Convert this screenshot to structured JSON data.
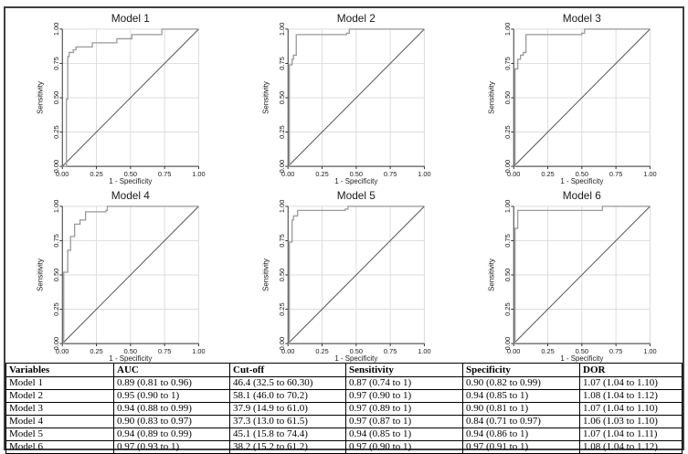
{
  "colors": {
    "figure_border": "#404040",
    "grid": "#dcdcdc",
    "axis": "#333333",
    "roc_curve": "#999999",
    "diagonal": "#555555",
    "text": "#1a1a1a"
  },
  "chart_data": [
    {
      "type": "line",
      "subtype": "roc-step",
      "title": "Model 1",
      "xlabel": "1 - Specificity",
      "ylabel": "Sensitivity",
      "xlim": [
        0,
        1
      ],
      "ylim": [
        0,
        1
      ],
      "xticks": [
        0,
        0.25,
        0.5,
        0.75,
        1
      ],
      "yticks": [
        0,
        0.25,
        0.5,
        0.75,
        1
      ],
      "xtick_labels": [
        "0.00",
        "0.25",
        "0.50",
        "0.75",
        "1.00"
      ],
      "ytick_labels": [
        "0.00",
        "0.25",
        "0.50",
        "0.75",
        "1.00"
      ],
      "grid": true,
      "roc_points": [
        [
          0,
          0
        ],
        [
          0.03,
          0
        ],
        [
          0.03,
          0.49
        ],
        [
          0.04,
          0.49
        ],
        [
          0.04,
          0.8
        ],
        [
          0.05,
          0.8
        ],
        [
          0.05,
          0.83
        ],
        [
          0.08,
          0.83
        ],
        [
          0.08,
          0.85
        ],
        [
          0.1,
          0.85
        ],
        [
          0.1,
          0.87
        ],
        [
          0.22,
          0.87
        ],
        [
          0.22,
          0.9
        ],
        [
          0.4,
          0.9
        ],
        [
          0.4,
          0.93
        ],
        [
          0.51,
          0.93
        ],
        [
          0.51,
          0.96
        ],
        [
          0.73,
          0.96
        ],
        [
          0.73,
          1
        ],
        [
          1,
          1
        ]
      ],
      "diagonal": [
        [
          0,
          0
        ],
        [
          1,
          1
        ]
      ]
    },
    {
      "type": "line",
      "subtype": "roc-step",
      "title": "Model 2",
      "xlabel": "1 - Specificity",
      "ylabel": "Sensitivity",
      "xlim": [
        0,
        1
      ],
      "ylim": [
        0,
        1
      ],
      "xticks": [
        0,
        0.25,
        0.5,
        0.75,
        1
      ],
      "yticks": [
        0,
        0.25,
        0.5,
        0.75,
        1
      ],
      "xtick_labels": [
        "0.00",
        "0.25",
        "0.50",
        "0.75",
        "1.00"
      ],
      "ytick_labels": [
        "0.00",
        "0.25",
        "0.50",
        "0.75",
        "1.00"
      ],
      "grid": true,
      "roc_points": [
        [
          0,
          0
        ],
        [
          0.01,
          0
        ],
        [
          0.01,
          0.74
        ],
        [
          0.03,
          0.74
        ],
        [
          0.03,
          0.78
        ],
        [
          0.04,
          0.78
        ],
        [
          0.04,
          0.81
        ],
        [
          0.06,
          0.81
        ],
        [
          0.06,
          0.96
        ],
        [
          0.43,
          0.96
        ],
        [
          0.43,
          0.97
        ],
        [
          0.45,
          0.97
        ],
        [
          0.45,
          1
        ],
        [
          1,
          1
        ]
      ],
      "diagonal": [
        [
          0,
          0
        ],
        [
          1,
          1
        ]
      ]
    },
    {
      "type": "line",
      "subtype": "roc-step",
      "title": "Model 3",
      "xlabel": "1 - Specificity",
      "ylabel": "Sensitivity",
      "xlim": [
        0,
        1
      ],
      "ylim": [
        0,
        1
      ],
      "xticks": [
        0,
        0.25,
        0.5,
        0.75,
        1
      ],
      "yticks": [
        0,
        0.25,
        0.5,
        0.75,
        1
      ],
      "xtick_labels": [
        "0.00",
        "0.25",
        "0.50",
        "0.75",
        "1.00"
      ],
      "ytick_labels": [
        "0.00",
        "0.25",
        "0.50",
        "0.75",
        "1.00"
      ],
      "grid": true,
      "roc_points": [
        [
          0,
          0
        ],
        [
          0.01,
          0
        ],
        [
          0.01,
          0.71
        ],
        [
          0.03,
          0.71
        ],
        [
          0.03,
          0.78
        ],
        [
          0.05,
          0.78
        ],
        [
          0.05,
          0.81
        ],
        [
          0.07,
          0.81
        ],
        [
          0.07,
          0.83
        ],
        [
          0.09,
          0.83
        ],
        [
          0.09,
          0.96
        ],
        [
          0.5,
          0.96
        ],
        [
          0.5,
          0.97
        ],
        [
          0.52,
          0.97
        ],
        [
          0.52,
          1
        ],
        [
          1,
          1
        ]
      ],
      "diagonal": [
        [
          0,
          0
        ],
        [
          1,
          1
        ]
      ]
    },
    {
      "type": "line",
      "subtype": "roc-step",
      "title": "Model 4",
      "xlabel": "1 - Specificity",
      "ylabel": "Sensitivity",
      "xlim": [
        0,
        1
      ],
      "ylim": [
        0,
        1
      ],
      "xticks": [
        0,
        0.25,
        0.5,
        0.75,
        1
      ],
      "yticks": [
        0,
        0.25,
        0.5,
        0.75,
        1
      ],
      "xtick_labels": [
        "0.00",
        "0.25",
        "0.50",
        "0.75",
        "1.00"
      ],
      "ytick_labels": [
        "0.00",
        "0.25",
        "0.50",
        "0.75",
        "1.00"
      ],
      "grid": true,
      "roc_points": [
        [
          0,
          0
        ],
        [
          0.01,
          0
        ],
        [
          0.01,
          0.52
        ],
        [
          0.04,
          0.52
        ],
        [
          0.04,
          0.68
        ],
        [
          0.06,
          0.68
        ],
        [
          0.06,
          0.78
        ],
        [
          0.09,
          0.78
        ],
        [
          0.09,
          0.87
        ],
        [
          0.13,
          0.87
        ],
        [
          0.13,
          0.9
        ],
        [
          0.17,
          0.9
        ],
        [
          0.17,
          0.96
        ],
        [
          0.32,
          0.96
        ],
        [
          0.32,
          0.97
        ],
        [
          0.33,
          0.97
        ],
        [
          0.33,
          1
        ],
        [
          1,
          1
        ]
      ],
      "diagonal": [
        [
          0,
          0
        ],
        [
          1,
          1
        ]
      ]
    },
    {
      "type": "line",
      "subtype": "roc-step",
      "title": "Model 5",
      "xlabel": "1 - Specificity",
      "ylabel": "Sensitivity",
      "xlim": [
        0,
        1
      ],
      "ylim": [
        0,
        1
      ],
      "xticks": [
        0,
        0.25,
        0.5,
        0.75,
        1
      ],
      "yticks": [
        0,
        0.25,
        0.5,
        0.75,
        1
      ],
      "xtick_labels": [
        "0.00",
        "0.25",
        "0.50",
        "0.75",
        "1.00"
      ],
      "ytick_labels": [
        "0.00",
        "0.25",
        "0.50",
        "0.75",
        "1.00"
      ],
      "grid": true,
      "roc_points": [
        [
          0,
          0
        ],
        [
          0.01,
          0
        ],
        [
          0.01,
          0.74
        ],
        [
          0.03,
          0.74
        ],
        [
          0.03,
          0.9
        ],
        [
          0.04,
          0.9
        ],
        [
          0.04,
          0.93
        ],
        [
          0.07,
          0.93
        ],
        [
          0.07,
          0.97
        ],
        [
          0.42,
          0.97
        ],
        [
          0.42,
          0.98
        ],
        [
          0.44,
          0.98
        ],
        [
          0.44,
          1
        ],
        [
          1,
          1
        ]
      ],
      "diagonal": [
        [
          0,
          0
        ],
        [
          1,
          1
        ]
      ]
    },
    {
      "type": "line",
      "subtype": "roc-step",
      "title": "Model 6",
      "xlabel": "1 - Specificity",
      "ylabel": "Sensitivity",
      "xlim": [
        0,
        1
      ],
      "ylim": [
        0,
        1
      ],
      "xticks": [
        0,
        0.25,
        0.5,
        0.75,
        1
      ],
      "yticks": [
        0,
        0.25,
        0.5,
        0.75,
        1
      ],
      "xtick_labels": [
        "0.00",
        "0.25",
        "0.50",
        "0.75",
        "1.00"
      ],
      "ytick_labels": [
        "0.00",
        "0.25",
        "0.50",
        "0.75",
        "1.00"
      ],
      "grid": true,
      "roc_points": [
        [
          0,
          0
        ],
        [
          0.01,
          0
        ],
        [
          0.01,
          0.84
        ],
        [
          0.03,
          0.84
        ],
        [
          0.03,
          0.97
        ],
        [
          0.65,
          0.97
        ],
        [
          0.65,
          1
        ],
        [
          1,
          1
        ]
      ],
      "diagonal": [
        [
          0,
          0
        ],
        [
          1,
          1
        ]
      ]
    }
  ],
  "table": {
    "headers": [
      "Variables",
      "AUC",
      "Cut-off",
      "Sensitivity",
      "Specificity",
      "DOR"
    ],
    "rows": [
      [
        "Model 1",
        "0.89 (0.81 to 0.96)",
        "46.4 (32.5 to 60.30)",
        "0.87 (0.74 to 1)",
        "0.90 (0.82 to 0.99)",
        "1.07 (1.04 to 1.10)"
      ],
      [
        "Model 2",
        "0.95 (0.90 to 1)",
        "58.1 (46.0 to 70.2)",
        "0.97 (0.90 to 1)",
        "0.94 (0.85 to 1)",
        "1.08 (1.04 to 1.12)"
      ],
      [
        "Model 3",
        "0.94 (0.88 to 0.99)",
        "37.9 (14.9 to 61.0)",
        "0.97 (0.89 to 1)",
        "0.90 (0.81 to 1)",
        "1.07 (1.04 to 1.10)"
      ],
      [
        "Model 4",
        "0.90 (0.83 to 0.97)",
        "37.3 (13.0 to 61.5)",
        "0.97 (0.87 to 1)",
        "0.84 (0.71 to 0.97)",
        "1.06 (1.03 to 1.10)"
      ],
      [
        "Model 5",
        "0.94 (0.89 to 0.99)",
        "45.1 (15.8 to 74.4)",
        "0.94 (0.85 to 1)",
        "0.94 (0.86 to 1)",
        "1.07 (1.04 to 1.11)"
      ],
      [
        "Model 6",
        "0.97 (0.93 to 1)",
        "38.2 (15.2 to 61.2)",
        "0.97 (0.90 to 1)",
        "0.97 (0.91 to 1)",
        "1.08 (1.04 to 1.12)"
      ]
    ]
  }
}
